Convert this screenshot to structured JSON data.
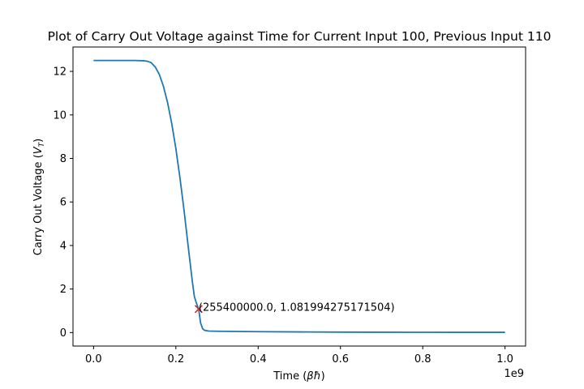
{
  "chart_data": {
    "type": "line",
    "title": "Plot of Carry Out Voltage against Time for Current Input 100, Previous Input 110",
    "xlabel_prefix": "Time (",
    "xlabel_symbol": "βħ",
    "xlabel_suffix": ")",
    "ylabel_prefix": "Carry Out Voltage (",
    "ylabel_symbol": "V",
    "ylabel_sub": "T",
    "ylabel_suffix": ")",
    "x_offset_label": "1e9",
    "xlim": [
      -50000000,
      1050000000
    ],
    "ylim": [
      -0.62,
      13.12
    ],
    "x_ticks": [
      0,
      200000000,
      400000000,
      600000000,
      800000000,
      1000000000
    ],
    "x_tick_labels": [
      "0.0",
      "0.2",
      "0.4",
      "0.6",
      "0.8",
      "1.0"
    ],
    "y_ticks": [
      0,
      2,
      4,
      6,
      8,
      10,
      12
    ],
    "y_tick_labels": [
      "0",
      "2",
      "4",
      "6",
      "8",
      "10",
      "12"
    ],
    "grid": false,
    "legend": "none",
    "series": [
      {
        "color": "#1f77b4",
        "x": [
          0,
          50000000,
          100000000,
          120000000,
          130000000,
          140000000,
          150000000,
          160000000,
          170000000,
          180000000,
          190000000,
          200000000,
          210000000,
          220000000,
          230000000,
          240000000,
          245000000,
          250000000,
          255400000,
          260000000,
          265000000,
          270000000,
          280000000,
          300000000,
          400000000,
          500000000,
          600000000,
          700000000,
          800000000,
          900000000,
          1000000000
        ],
        "y": [
          12.5,
          12.5,
          12.5,
          12.49,
          12.47,
          12.4,
          12.2,
          11.85,
          11.3,
          10.55,
          9.6,
          8.45,
          7.1,
          5.6,
          3.95,
          2.35,
          1.65,
          1.35,
          1.082,
          0.45,
          0.18,
          0.1,
          0.07,
          0.06,
          0.04,
          0.03,
          0.02,
          0.015,
          0.012,
          0.01,
          0.01
        ]
      }
    ],
    "marker": {
      "x": 255400000,
      "y": 1.081994275171504,
      "symbol": "x",
      "color": "#d62728",
      "label": "(255400000.0, 1.081994275171504)"
    }
  }
}
